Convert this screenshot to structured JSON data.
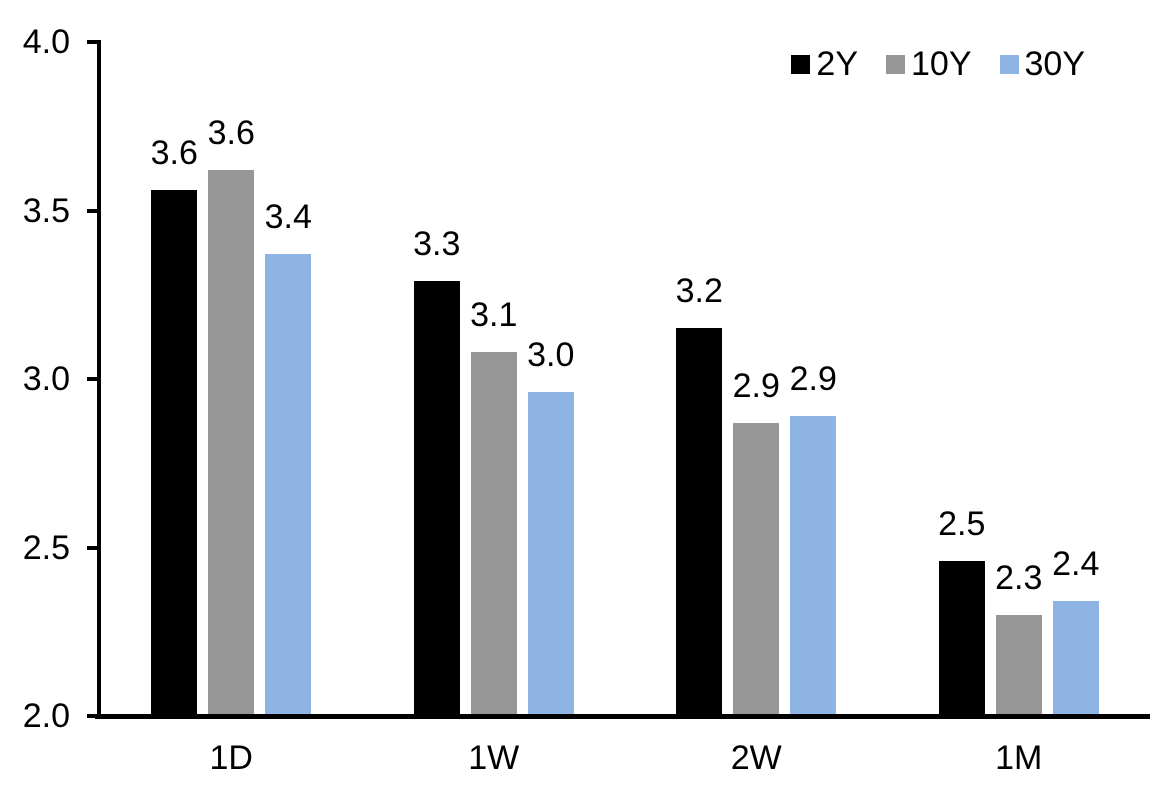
{
  "chart_data": {
    "type": "bar",
    "title": "",
    "xlabel": "",
    "ylabel": "",
    "categories": [
      "1D",
      "1W",
      "2W",
      "1M"
    ],
    "series": [
      {
        "name": "2Y",
        "color": "#000000",
        "values": [
          3.6,
          3.3,
          3.2,
          2.5
        ],
        "labels": [
          "3.6",
          "3.3",
          "3.2",
          "2.5"
        ],
        "precise": [
          3.56,
          3.29,
          3.15,
          2.46
        ]
      },
      {
        "name": "10Y",
        "color": "#969696",
        "values": [
          3.6,
          3.1,
          2.9,
          2.3
        ],
        "labels": [
          "3.6",
          "3.1",
          "2.9",
          "2.3"
        ],
        "precise": [
          3.62,
          3.08,
          2.87,
          2.3
        ]
      },
      {
        "name": "30Y",
        "color": "#8DB4E2",
        "values": [
          3.4,
          3.0,
          2.9,
          2.4
        ],
        "labels": [
          "3.4",
          "3.0",
          "2.9",
          "2.4"
        ],
        "precise": [
          3.37,
          2.96,
          2.89,
          2.34
        ]
      }
    ],
    "ylim": [
      2.0,
      4.0
    ],
    "ytick_labels": [
      "2.0",
      "2.5",
      "3.0",
      "3.5",
      "4.0"
    ],
    "ytick_values": [
      2.0,
      2.5,
      3.0,
      3.5,
      4.0
    ],
    "legend": {
      "position": "top-right",
      "entries": [
        "2Y",
        "10Y",
        "30Y"
      ]
    },
    "grid": false,
    "axis_color": "#000000",
    "text_color": "#000000",
    "background": "#FFFFFF"
  }
}
